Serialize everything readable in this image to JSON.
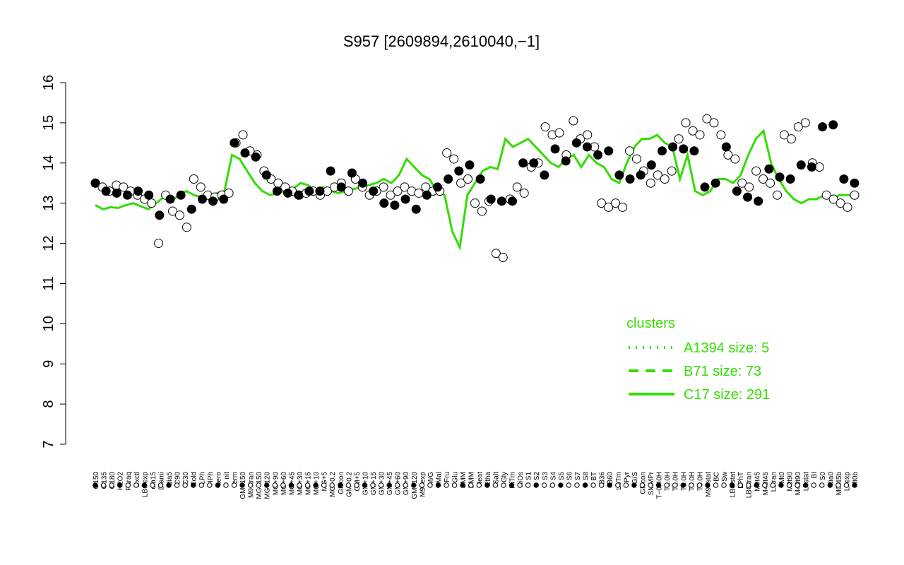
{
  "chart_data": {
    "type": "scatter",
    "title": "S957 [2609894,2610040,−1]",
    "xlabel": "",
    "ylabel": "",
    "ylim": [
      7,
      16
    ],
    "yticks": [
      7,
      8,
      9,
      10,
      11,
      12,
      13,
      14,
      15,
      16
    ],
    "xtick_labels": [
      "G150",
      "G135",
      "G180",
      "H2O2",
      "Paraq",
      "Oxctl",
      "LBGexp",
      "dia15",
      "Diami",
      "dia5",
      "C90",
      "C30",
      "Cold",
      "LPh",
      "HPh",
      "aero",
      "nit",
      "ferm",
      "GM+150",
      "M9−tran",
      "MG+150",
      "MG+120",
      "MG+90",
      "MG+60",
      "MG+45",
      "MG+30",
      "MG+15",
      "MG+10",
      "MG+5",
      "MG−0.2",
      "Glucon",
      "GM−0.2",
      "GM+5",
      "GM+10",
      "GM+15",
      "GM+30",
      "GM+45",
      "GM+60",
      "GM+90",
      "GM+120",
      "M9−exp",
      "M/G",
      "Mal",
      "Fru",
      "Glu",
      "SMM",
      "BMM",
      "Heat",
      "Etha",
      "Salt",
      "Gly",
      "HiTm",
      "HiOs",
      "S1",
      "S2",
      "S3",
      "S4",
      "S5",
      "S6",
      "S7",
      "S8",
      "BT",
      "B36",
      "B60",
      "LoTm",
      "Pyr",
      "G/S",
      "Glucon",
      "SMMPr",
      "T−0.40H",
      "T1.0H",
      "T2.0H",
      "T3.0H",
      "T4.0H",
      "T5.0H",
      "M9−stat",
      "BC",
      "Sw",
      "LBGstat",
      "LPhT",
      "LBGtran",
      "M0t45",
      "M40t45",
      "Lbtran",
      "Mt0",
      "M0t90",
      "M40t90",
      "Lbstat",
      "BI",
      "S0",
      "dia0",
      "M0t45b",
      "Lbexp",
      "Mt0b"
    ],
    "trend_x": [
      0,
      2,
      4,
      6,
      8,
      10,
      12,
      14,
      16,
      18,
      20,
      22,
      24,
      26,
      28,
      30,
      32,
      34,
      36,
      38,
      40,
      42,
      44,
      46,
      48,
      50,
      52,
      54,
      56,
      58,
      60,
      62,
      64,
      66,
      68,
      70,
      72,
      74,
      76,
      78,
      80,
      82,
      84,
      86,
      88,
      90,
      92,
      94,
      96,
      98,
      100,
      102,
      104,
      106,
      108,
      110,
      112,
      114,
      116,
      118,
      120,
      122,
      124,
      126,
      128,
      130,
      132,
      134,
      136,
      138,
      140,
      142,
      144,
      146,
      148,
      150,
      152,
      154,
      156,
      158,
      160,
      162,
      164,
      166,
      168,
      170,
      172,
      174,
      176,
      178,
      180,
      182,
      184,
      186,
      188,
      190,
      192,
      194,
      196,
      198,
      200
    ],
    "trend_y": [
      12.95,
      12.85,
      12.9,
      12.88,
      12.95,
      13.0,
      12.92,
      12.85,
      13.0,
      13.15,
      13.05,
      13.2,
      13.3,
      13.2,
      13.15,
      13.1,
      13.25,
      13.3,
      14.2,
      14.1,
      13.8,
      13.5,
      13.3,
      13.2,
      13.25,
      13.3,
      13.35,
      13.5,
      13.45,
      13.3,
      13.4,
      13.3,
      13.25,
      13.3,
      13.35,
      13.4,
      13.45,
      13.5,
      13.6,
      13.5,
      13.7,
      14.1,
      13.9,
      13.7,
      13.6,
      13.3,
      13.2,
      12.3,
      11.9,
      13.2,
      13.5,
      13.8,
      13.9,
      13.85,
      14.6,
      14.4,
      14.5,
      14.6,
      14.4,
      14.2,
      14.0,
      13.9,
      14.1,
      14.2,
      13.9,
      14.2,
      14.0,
      13.9,
      13.6,
      13.5,
      14.0,
      14.4,
      14.6,
      14.6,
      14.7,
      14.5,
      14.4,
      13.6,
      14.2,
      13.3,
      13.2,
      13.3,
      13.6,
      13.6,
      13.5,
      13.7,
      14.2,
      14.6,
      14.8,
      14.0,
      13.6,
      13.3,
      13.1,
      13.0,
      13.1,
      13.1,
      13.2,
      13.1,
      13.2,
      13.2,
      13.2
    ],
    "points_open": [
      [
        0,
        13.5
      ],
      [
        1,
        13.4
      ],
      [
        2,
        13.3
      ],
      [
        3,
        13.45
      ],
      [
        4,
        13.4
      ],
      [
        5,
        13.3
      ],
      [
        6,
        13.2
      ],
      [
        7,
        13.1
      ],
      [
        8,
        13.0
      ],
      [
        9,
        12.0
      ],
      [
        10,
        13.2
      ],
      [
        11,
        12.8
      ],
      [
        12,
        12.7
      ],
      [
        13,
        12.4
      ],
      [
        14,
        13.6
      ],
      [
        15,
        13.4
      ],
      [
        16,
        13.2
      ],
      [
        17,
        13.15
      ],
      [
        18,
        13.2
      ],
      [
        19,
        13.25
      ],
      [
        20,
        14.5
      ],
      [
        21,
        14.7
      ],
      [
        22,
        14.3
      ],
      [
        23,
        14.2
      ],
      [
        24,
        13.8
      ],
      [
        25,
        13.6
      ],
      [
        26,
        13.5
      ],
      [
        27,
        13.4
      ],
      [
        28,
        13.3
      ],
      [
        29,
        13.2
      ],
      [
        30,
        13.25
      ],
      [
        31,
        13.3
      ],
      [
        32,
        13.2
      ],
      [
        33,
        13.3
      ],
      [
        34,
        13.4
      ],
      [
        35,
        13.5
      ],
      [
        36,
        13.3
      ],
      [
        37,
        13.6
      ],
      [
        38,
        13.4
      ],
      [
        39,
        13.2
      ],
      [
        40,
        13.3
      ],
      [
        41,
        13.4
      ],
      [
        42,
        13.2
      ],
      [
        43,
        13.3
      ],
      [
        44,
        13.4
      ],
      [
        45,
        13.3
      ],
      [
        46,
        13.25
      ],
      [
        47,
        13.4
      ],
      [
        48,
        13.3
      ],
      [
        49,
        13.3
      ],
      [
        50,
        14.25
      ],
      [
        51,
        14.1
      ],
      [
        52,
        13.5
      ],
      [
        53,
        13.6
      ],
      [
        54,
        13.0
      ],
      [
        55,
        12.8
      ],
      [
        56,
        13.05
      ],
      [
        57,
        11.75
      ],
      [
        58,
        11.65
      ],
      [
        59,
        13.1
      ],
      [
        60,
        13.4
      ],
      [
        61,
        13.25
      ],
      [
        62,
        13.9
      ],
      [
        63,
        14.0
      ],
      [
        64,
        14.9
      ],
      [
        65,
        14.7
      ],
      [
        66,
        14.75
      ],
      [
        67,
        14.2
      ],
      [
        68,
        15.05
      ],
      [
        69,
        14.6
      ],
      [
        70,
        14.7
      ],
      [
        71,
        14.4
      ],
      [
        72,
        13.0
      ],
      [
        73,
        12.9
      ],
      [
        74,
        13.0
      ],
      [
        75,
        12.9
      ],
      [
        76,
        14.3
      ],
      [
        77,
        14.1
      ],
      [
        78,
        13.8
      ],
      [
        79,
        13.5
      ],
      [
        80,
        13.7
      ],
      [
        81,
        13.6
      ],
      [
        82,
        13.8
      ],
      [
        83,
        14.6
      ],
      [
        84,
        15.0
      ],
      [
        85,
        14.8
      ],
      [
        86,
        14.7
      ],
      [
        87,
        15.1
      ],
      [
        88,
        15.0
      ],
      [
        89,
        14.7
      ],
      [
        90,
        14.2
      ],
      [
        91,
        14.1
      ],
      [
        92,
        13.5
      ],
      [
        93,
        13.4
      ],
      [
        94,
        13.8
      ],
      [
        95,
        13.6
      ],
      [
        96,
        13.5
      ],
      [
        97,
        13.2
      ],
      [
        98,
        14.7
      ],
      [
        99,
        14.6
      ],
      [
        100,
        14.9
      ],
      [
        101,
        15.0
      ],
      [
        102,
        14.0
      ],
      [
        103,
        13.9
      ],
      [
        104,
        13.2
      ],
      [
        105,
        13.1
      ],
      [
        106,
        13.0
      ],
      [
        107,
        12.9
      ],
      [
        108,
        13.2
      ]
    ],
    "points_filled": [
      [
        0,
        13.5
      ],
      [
        1,
        13.3
      ],
      [
        2,
        13.25
      ],
      [
        3,
        13.2
      ],
      [
        4,
        13.3
      ],
      [
        5,
        13.2
      ],
      [
        6,
        12.7
      ],
      [
        7,
        13.1
      ],
      [
        8,
        13.2
      ],
      [
        9,
        12.85
      ],
      [
        10,
        13.1
      ],
      [
        11,
        13.05
      ],
      [
        12,
        13.1
      ],
      [
        13,
        14.5
      ],
      [
        14,
        14.25
      ],
      [
        15,
        14.15
      ],
      [
        16,
        13.7
      ],
      [
        17,
        13.3
      ],
      [
        18,
        13.25
      ],
      [
        19,
        13.2
      ],
      [
        20,
        13.3
      ],
      [
        21,
        13.3
      ],
      [
        22,
        13.8
      ],
      [
        23,
        13.4
      ],
      [
        24,
        13.75
      ],
      [
        25,
        13.5
      ],
      [
        26,
        13.3
      ],
      [
        27,
        13.0
      ],
      [
        28,
        12.95
      ],
      [
        29,
        13.1
      ],
      [
        30,
        12.85
      ],
      [
        31,
        13.2
      ],
      [
        32,
        13.4
      ],
      [
        33,
        13.6
      ],
      [
        34,
        13.8
      ],
      [
        35,
        13.95
      ],
      [
        36,
        13.6
      ],
      [
        37,
        13.1
      ],
      [
        38,
        13.05
      ],
      [
        39,
        13.05
      ],
      [
        40,
        14.0
      ],
      [
        41,
        14.0
      ],
      [
        42,
        13.7
      ],
      [
        43,
        14.35
      ],
      [
        44,
        14.05
      ],
      [
        45,
        14.5
      ],
      [
        46,
        14.4
      ],
      [
        47,
        14.2
      ],
      [
        48,
        14.3
      ],
      [
        49,
        13.7
      ],
      [
        50,
        13.6
      ],
      [
        51,
        13.7
      ],
      [
        52,
        13.95
      ],
      [
        53,
        14.3
      ],
      [
        54,
        14.4
      ],
      [
        55,
        14.35
      ],
      [
        56,
        14.3
      ],
      [
        57,
        13.4
      ],
      [
        58,
        13.5
      ],
      [
        59,
        14.4
      ],
      [
        60,
        13.3
      ],
      [
        61,
        13.15
      ],
      [
        62,
        13.05
      ],
      [
        63,
        13.85
      ],
      [
        64,
        13.65
      ],
      [
        65,
        13.6
      ],
      [
        66,
        13.95
      ],
      [
        67,
        13.9
      ],
      [
        68,
        14.9
      ],
      [
        69,
        14.95
      ],
      [
        70,
        13.6
      ],
      [
        71,
        13.5
      ]
    ],
    "series": [
      {
        "name": "A1394 size: 5",
        "style": "dotted"
      },
      {
        "name": "B71 size: 73",
        "style": "dashed"
      },
      {
        "name": "C17 size: 291",
        "style": "solid"
      }
    ],
    "legend_title": "clusters",
    "legend_placement": "right",
    "colors": {
      "cluster": "#33dd00",
      "points": "#000000"
    }
  }
}
